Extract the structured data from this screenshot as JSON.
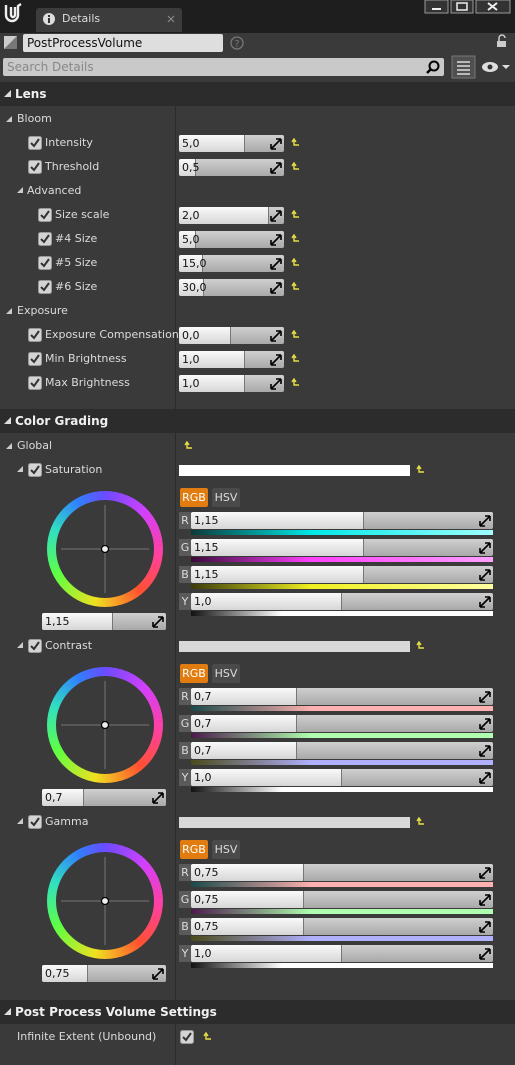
{
  "tab": "Details",
  "object_name": "PostProcessVolume",
  "search_placeholder": "Search Details",
  "sections": [
    {
      "title": "Lens",
      "groups": [
        {
          "title": "Bloom",
          "rows": [
            {
              "label": "Intensity",
              "value": "5,0"
            },
            {
              "label": "Threshold",
              "value": "0,5"
            }
          ],
          "subgroups": [
            {
              "title": "Advanced",
              "rows": [
                {
                  "label": "Size scale",
                  "value": "2,0"
                },
                {
                  "label": "#4 Size",
                  "value": "5,0"
                },
                {
                  "label": "#5 Size",
                  "value": "15,0"
                },
                {
                  "label": "#6 Size",
                  "value": "30,0"
                }
              ]
            }
          ]
        },
        {
          "title": "Exposure",
          "rows": [
            {
              "label": "Exposure Compensation",
              "value": "0,0"
            },
            {
              "label": "Min Brightness",
              "value": "1,0"
            },
            {
              "label": "Max Brightness",
              "value": "1,0"
            }
          ]
        }
      ]
    },
    {
      "title": "Color Grading",
      "groups": [
        {
          "title": "Global",
          "wheels": [
            {
              "label": "Saturation",
              "value": "1,15",
              "modes": [
                "RGB",
                "HSV"
              ],
              "channels": [
                {
                  "label": "R",
                  "value": "1,15"
                },
                {
                  "label": "G",
                  "value": "1,15"
                },
                {
                  "label": "B",
                  "value": "1,15"
                },
                {
                  "label": "Y",
                  "value": "1,0"
                }
              ]
            },
            {
              "label": "Contrast",
              "value": "0,7",
              "modes": [
                "RGB",
                "HSV"
              ],
              "channels": [
                {
                  "label": "R",
                  "value": "0,7"
                },
                {
                  "label": "G",
                  "value": "0,7"
                },
                {
                  "label": "B",
                  "value": "0,7"
                },
                {
                  "label": "Y",
                  "value": "1,0"
                }
              ]
            },
            {
              "label": "Gamma",
              "value": "0,75",
              "modes": [
                "RGB",
                "HSV"
              ],
              "channels": [
                {
                  "label": "R",
                  "value": "0,75"
                },
                {
                  "label": "G",
                  "value": "0,75"
                },
                {
                  "label": "B",
                  "value": "0,75"
                },
                {
                  "label": "Y",
                  "value": "1,0"
                }
              ]
            }
          ]
        }
      ]
    },
    {
      "title": "Post Process Volume Settings",
      "rows": [
        {
          "label": "Infinite Extent (Unbound)"
        }
      ]
    }
  ]
}
